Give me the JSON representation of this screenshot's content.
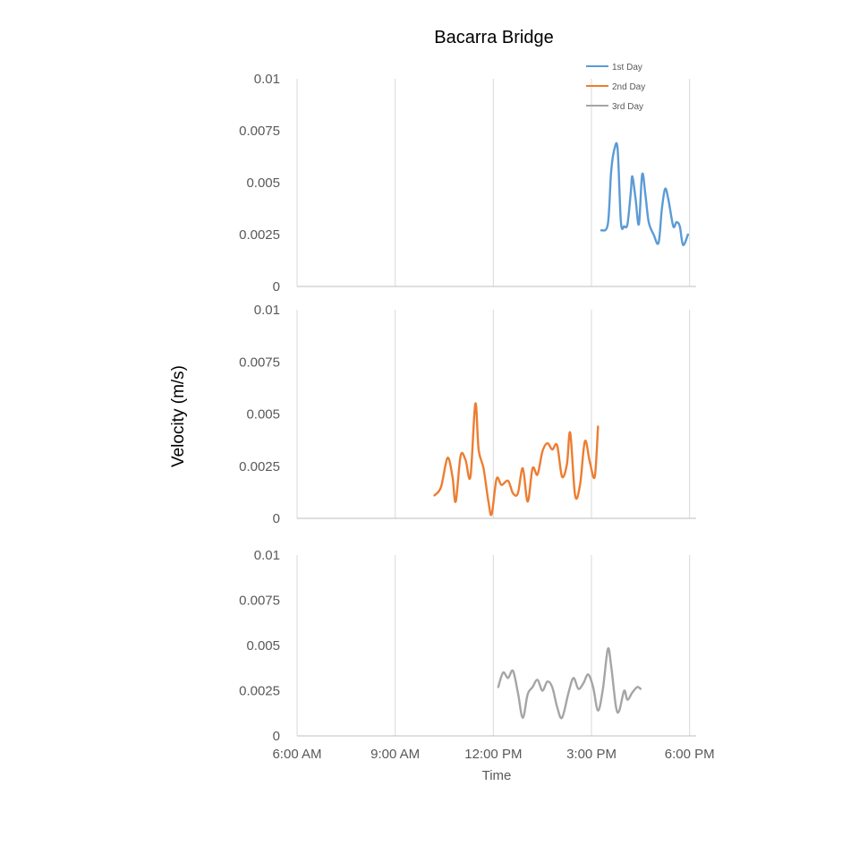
{
  "chart_data": {
    "type": "line",
    "title": "Bacarra Bridge",
    "ylabel": "Velocity (m/s)",
    "xlabel": "Time",
    "x_ticks": [
      {
        "label": "6:00 AM",
        "hours": 6
      },
      {
        "label": "9:00 AM",
        "hours": 9
      },
      {
        "label": "12:00 PM",
        "hours": 12
      },
      {
        "label": "3:00 PM",
        "hours": 15
      },
      {
        "label": "6:00 PM",
        "hours": 18
      }
    ],
    "xlim_hours": [
      6,
      18.2
    ],
    "y_ticks": [
      "0",
      "0.0025",
      "0.005",
      "0.0075",
      "0.01"
    ],
    "y_tick_values": [
      0,
      0.0025,
      0.005,
      0.0075,
      0.01
    ],
    "ylim": [
      0,
      0.01
    ],
    "grid": "vertical",
    "legend": {
      "position": "top-right",
      "entries": [
        "1st Day",
        "2nd Day",
        "3rd Day"
      ]
    },
    "series": [
      {
        "name": "1st Day",
        "color": "#5B9BD5",
        "points": [
          [
            15.3,
            0.0027
          ],
          [
            15.5,
            0.003
          ],
          [
            15.6,
            0.0055
          ],
          [
            15.7,
            0.0066
          ],
          [
            15.8,
            0.0066
          ],
          [
            15.9,
            0.0031
          ],
          [
            16.0,
            0.0029
          ],
          [
            16.1,
            0.003
          ],
          [
            16.2,
            0.0045
          ],
          [
            16.25,
            0.0053
          ],
          [
            16.35,
            0.0042
          ],
          [
            16.45,
            0.003
          ],
          [
            16.55,
            0.0054
          ],
          [
            16.65,
            0.0044
          ],
          [
            16.75,
            0.0031
          ],
          [
            16.9,
            0.0025
          ],
          [
            17.05,
            0.0021
          ],
          [
            17.15,
            0.0037
          ],
          [
            17.25,
            0.0047
          ],
          [
            17.35,
            0.0042
          ],
          [
            17.5,
            0.0029
          ],
          [
            17.6,
            0.0031
          ],
          [
            17.7,
            0.0029
          ],
          [
            17.8,
            0.002
          ],
          [
            17.95,
            0.0025
          ]
        ]
      },
      {
        "name": "2nd Day",
        "color": "#ED7D31",
        "points": [
          [
            10.2,
            0.0011
          ],
          [
            10.4,
            0.0015
          ],
          [
            10.6,
            0.0029
          ],
          [
            10.75,
            0.002
          ],
          [
            10.85,
            0.0008
          ],
          [
            11.0,
            0.003
          ],
          [
            11.15,
            0.0028
          ],
          [
            11.3,
            0.002
          ],
          [
            11.45,
            0.0055
          ],
          [
            11.55,
            0.0033
          ],
          [
            11.7,
            0.0024
          ],
          [
            11.85,
            0.0008
          ],
          [
            11.95,
            0.0002
          ],
          [
            12.1,
            0.0019
          ],
          [
            12.25,
            0.0016
          ],
          [
            12.45,
            0.0018
          ],
          [
            12.6,
            0.0012
          ],
          [
            12.75,
            0.0012
          ],
          [
            12.9,
            0.0024
          ],
          [
            13.05,
            0.0008
          ],
          [
            13.2,
            0.0024
          ],
          [
            13.35,
            0.0021
          ],
          [
            13.5,
            0.0032
          ],
          [
            13.65,
            0.0036
          ],
          [
            13.8,
            0.0033
          ],
          [
            13.95,
            0.0035
          ],
          [
            14.1,
            0.002
          ],
          [
            14.25,
            0.0026
          ],
          [
            14.35,
            0.0041
          ],
          [
            14.5,
            0.0011
          ],
          [
            14.65,
            0.0016
          ],
          [
            14.8,
            0.0037
          ],
          [
            14.95,
            0.0027
          ],
          [
            15.1,
            0.002
          ],
          [
            15.2,
            0.0044
          ]
        ]
      },
      {
        "name": "3rd Day",
        "color": "#A5A5A5",
        "points": [
          [
            12.15,
            0.0027
          ],
          [
            12.3,
            0.0035
          ],
          [
            12.45,
            0.0032
          ],
          [
            12.6,
            0.0036
          ],
          [
            12.75,
            0.0024
          ],
          [
            12.9,
            0.001
          ],
          [
            13.05,
            0.0023
          ],
          [
            13.2,
            0.0027
          ],
          [
            13.35,
            0.0031
          ],
          [
            13.5,
            0.0025
          ],
          [
            13.65,
            0.003
          ],
          [
            13.8,
            0.0027
          ],
          [
            13.95,
            0.0016
          ],
          [
            14.1,
            0.001
          ],
          [
            14.3,
            0.0024
          ],
          [
            14.45,
            0.0032
          ],
          [
            14.6,
            0.0026
          ],
          [
            14.75,
            0.0029
          ],
          [
            14.9,
            0.0034
          ],
          [
            15.05,
            0.0027
          ],
          [
            15.2,
            0.0014
          ],
          [
            15.35,
            0.0026
          ],
          [
            15.5,
            0.0048
          ],
          [
            15.6,
            0.0039
          ],
          [
            15.75,
            0.0016
          ],
          [
            15.85,
            0.0014
          ],
          [
            16.0,
            0.0025
          ],
          [
            16.1,
            0.002
          ],
          [
            16.25,
            0.0024
          ],
          [
            16.4,
            0.0027
          ],
          [
            16.5,
            0.0026
          ]
        ]
      }
    ]
  }
}
